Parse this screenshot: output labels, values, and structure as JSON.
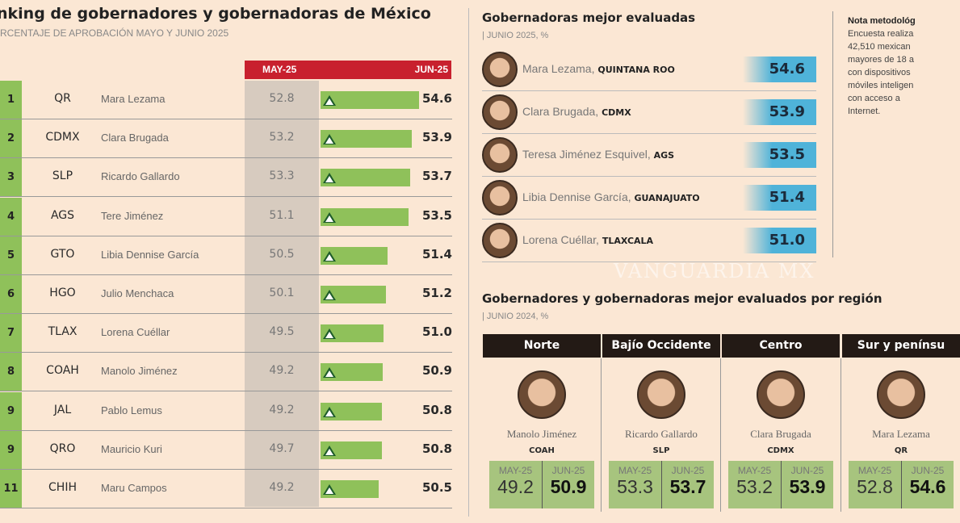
{
  "title": "nking de gobernadores y gobernadoras de México",
  "subtitle": "RCENTAJE DE APROBACIÓN MAYO Y JUNIO 2025",
  "columns": {
    "may": "MAY-25",
    "jun": "JUN-25"
  },
  "colors": {
    "header_red": "#c8202e",
    "green": "#8fc15a",
    "arrow": "#1d5b2a",
    "blue": "#4fb3d9"
  },
  "chart_data": {
    "type": "bar",
    "series": [
      {
        "name": "MAY-25"
      },
      {
        "name": "JUN-25"
      }
    ],
    "rows": [
      {
        "rank": "1",
        "state": "QR",
        "name": "Mara Lezama",
        "may": "52.8",
        "jun": "54.6"
      },
      {
        "rank": "2",
        "state": "CDMX",
        "name": "Clara Brugada",
        "may": "53.2",
        "jun": "53.9"
      },
      {
        "rank": "3",
        "state": "SLP",
        "name": "Ricardo Gallardo",
        "may": "53.3",
        "jun": "53.7"
      },
      {
        "rank": "4",
        "state": "AGS",
        "name": "Tere Jiménez",
        "may": "51.1",
        "jun": "53.5"
      },
      {
        "rank": "5",
        "state": "GTO",
        "name": "Libia Dennise García",
        "may": "50.5",
        "jun": "51.4"
      },
      {
        "rank": "6",
        "state": "HGO",
        "name": "Julio Menchaca",
        "may": "50.1",
        "jun": "51.2"
      },
      {
        "rank": "7",
        "state": "TLAX",
        "name": "Lorena Cuéllar",
        "may": "49.5",
        "jun": "51.0"
      },
      {
        "rank": "8",
        "state": "COAH",
        "name": "Manolo Jiménez",
        "may": "49.2",
        "jun": "50.9"
      },
      {
        "rank": "9",
        "state": "JAL",
        "name": "Pablo Lemus",
        "may": "49.2",
        "jun": "50.8"
      },
      {
        "rank": "9",
        "state": "QRO",
        "name": "Mauricio Kuri",
        "may": "49.7",
        "jun": "50.8"
      },
      {
        "rank": "11",
        "state": "CHIH",
        "name": "Maru Campos",
        "may": "49.2",
        "jun": "50.5"
      }
    ]
  },
  "women": {
    "title": "Gobernadoras mejor evaluadas",
    "subtitle": "| JUNIO 2025, %",
    "items": [
      {
        "name": "Mara Lezama,",
        "state": "QUINTANA ROO",
        "value": "54.6"
      },
      {
        "name": "Clara Brugada,",
        "state": "CDMX",
        "value": "53.9"
      },
      {
        "name": "Teresa Jiménez Esquivel,",
        "state": "AGS",
        "value": "53.5"
      },
      {
        "name": "Libia Dennise García,",
        "state": "GUANAJUATO",
        "value": "51.4"
      },
      {
        "name": "Lorena Cuéllar,",
        "state": "TLAXCALA",
        "value": "51.0"
      }
    ]
  },
  "note": {
    "title": "Nota metodológ",
    "lines": [
      "Encuesta realiza",
      "42,510 mexican",
      "mayores de 18 a",
      "con dispositivos",
      "móviles inteligen",
      "con acceso a",
      "Internet."
    ]
  },
  "regions": {
    "title": "Gobernadores y gobernadoras mejor evaluados por región",
    "subtitle": "| JUNIO 2024, %",
    "items": [
      {
        "region": "Norte",
        "name": "Manolo Jiménez",
        "state": "COAH",
        "may_label": "MAY-25",
        "jun_label": "JUN-25",
        "may": "49.2",
        "jun": "50.9"
      },
      {
        "region": "Bajío Occidente",
        "name": "Ricardo Gallardo",
        "state": "SLP",
        "may_label": "MAY-25",
        "jun_label": "JUN-25",
        "may": "53.3",
        "jun": "53.7"
      },
      {
        "region": "Centro",
        "name": "Clara Brugada",
        "state": "CDMX",
        "may_label": "MAY-25",
        "jun_label": "JUN-25",
        "may": "53.2",
        "jun": "53.9"
      },
      {
        "region": "Sur y penínsu",
        "name": "Mara Lezama",
        "state": "QR",
        "may_label": "MAY-25",
        "jun_label": "JUN-25",
        "may": "52.8",
        "jun": "54.6"
      }
    ]
  },
  "watermark": "VANGUARDIA MX"
}
